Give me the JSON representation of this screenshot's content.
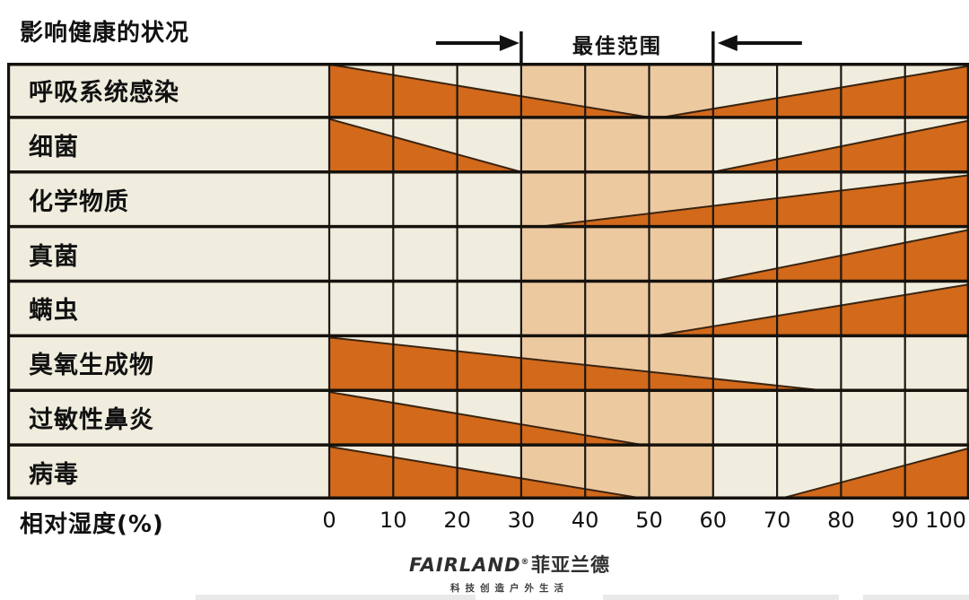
{
  "page": {
    "title": "影响健康的状况",
    "optimal_label": "最佳范围",
    "axis_label": "相对湿度(%)"
  },
  "chart_data": {
    "type": "area",
    "subtype": "humidity-optimum-wedge-chart",
    "title": "影响健康的状况",
    "xlabel": "相对湿度(%)",
    "x_ticks": [
      0,
      10,
      20,
      30,
      40,
      50,
      60,
      70,
      80,
      90,
      100
    ],
    "xlim": [
      0,
      100
    ],
    "optimal_range": [
      30,
      60
    ],
    "optimal_range_label": "最佳范围",
    "rows": [
      {
        "label": "呼吸系统感染",
        "wedges": [
          {
            "side": "left",
            "start": 0,
            "end": 50
          },
          {
            "side": "right",
            "start": 52,
            "end": 100
          }
        ]
      },
      {
        "label": "细菌",
        "wedges": [
          {
            "side": "left",
            "start": 0,
            "end": 30
          },
          {
            "side": "right",
            "start": 60,
            "end": 100
          }
        ]
      },
      {
        "label": "化学物质",
        "wedges": [
          {
            "side": "right",
            "start": 33,
            "end": 100
          }
        ]
      },
      {
        "label": "真菌",
        "wedges": [
          {
            "side": "right",
            "start": 60,
            "end": 100
          }
        ]
      },
      {
        "label": "螨虫",
        "wedges": [
          {
            "side": "right",
            "start": 51,
            "end": 100
          }
        ]
      },
      {
        "label": "臭氧生成物",
        "wedges": [
          {
            "side": "left",
            "start": 0,
            "end": 77
          }
        ]
      },
      {
        "label": "过敏性鼻炎",
        "wedges": [
          {
            "side": "left",
            "start": 0,
            "end": 49
          }
        ]
      },
      {
        "label": "病毒",
        "wedges": [
          {
            "side": "left",
            "start": 0,
            "end": 50
          },
          {
            "side": "right",
            "start": 70,
            "end": 100
          }
        ]
      }
    ],
    "wedge_semantics": "left = severity tapers from full height at start to zero at end; right = severity grows from zero at start to full height at end",
    "colors": {
      "wedge": "#d2691b",
      "wedge_outline": "#3a2410",
      "optimal_band": "#edc9a0",
      "row_bg": "#f0edde",
      "grid_line": "#1b1713",
      "row_separator": "#15110c",
      "text": "#111111"
    },
    "legend_position": "none",
    "grid": true
  },
  "footer": {
    "brand": "FAIRLAND",
    "reg": "®",
    "brand_cn": "菲亚兰德",
    "tagline": "科技创造户外生活"
  }
}
